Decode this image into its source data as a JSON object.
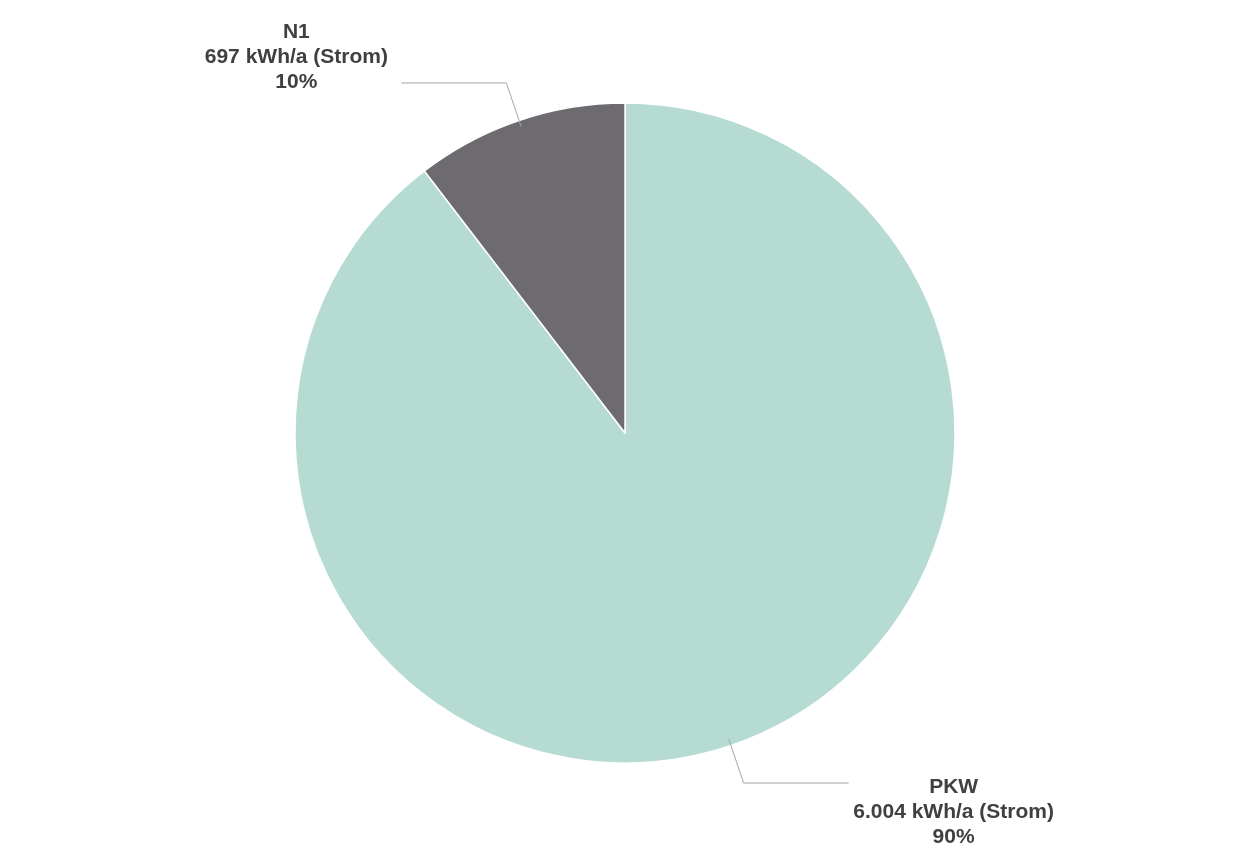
{
  "chart_data": {
    "type": "pie",
    "categories": [
      "PKW",
      "N1"
    ],
    "values": [
      6004,
      697
    ],
    "value_labels": [
      "6.004 kWh/a (Strom)\n90%",
      "697 kWh/a (Strom)\n10%"
    ],
    "colors": [
      "#b5dbd3",
      "#6d6b6f"
    ]
  }
}
